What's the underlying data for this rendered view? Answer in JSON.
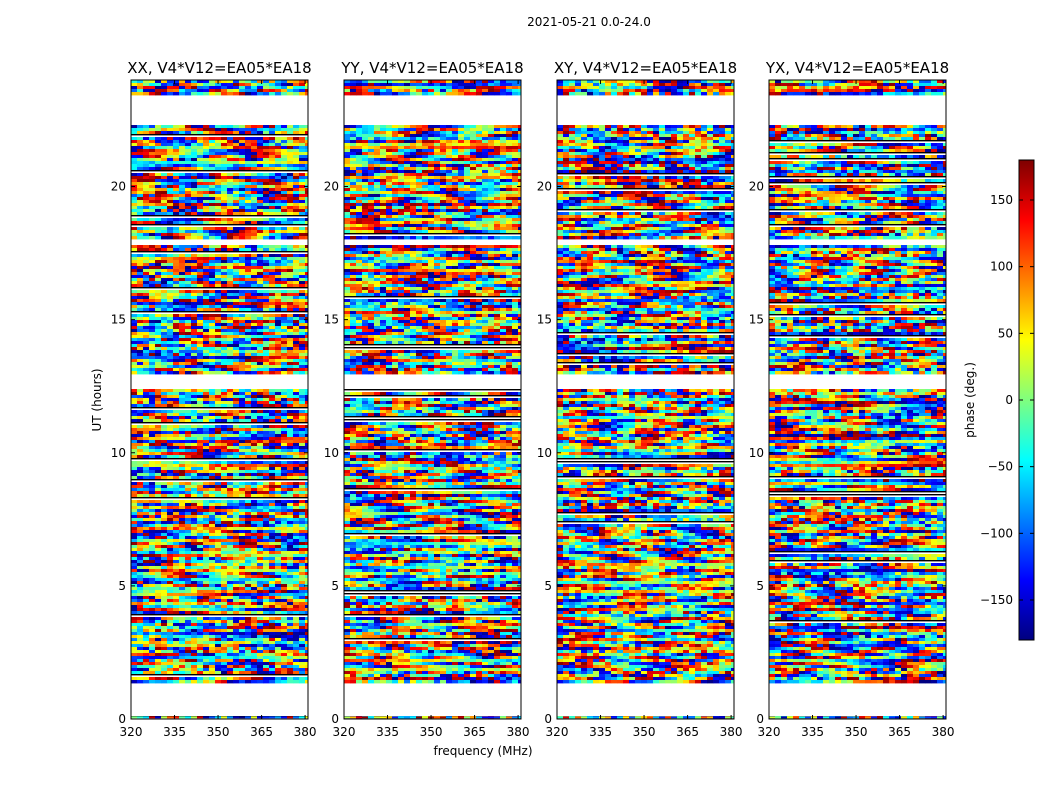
{
  "chart_data": {
    "type": "heatmap",
    "title": "2021-05-21 0.0-24.0",
    "xlabel": "frequency (MHz)",
    "ylabel": "UT (hours)",
    "colorbar_label": "phase (deg.)",
    "colormap": "jet",
    "xlim": [
      320,
      381
    ],
    "ylim": [
      0,
      24
    ],
    "x_ticks": [
      "320",
      "335",
      "350",
      "365",
      "380"
    ],
    "y_ticks": [
      "0",
      "5",
      "10",
      "15",
      "20"
    ],
    "color_range": [
      -180,
      180
    ],
    "colorbar_ticks": [
      "150",
      "100",
      "50",
      "0",
      "−50",
      "−100",
      "−150"
    ],
    "gaps_hours": [
      [
        0.1,
        1.35
      ],
      [
        12.4,
        13.0
      ],
      [
        17.75,
        18.05
      ],
      [
        22.3,
        23.4
      ]
    ],
    "panels": [
      {
        "title": "XX, V4*V12=EA05*EA18",
        "polarization": "XX",
        "baseline": "V4*V12=EA05*EA18"
      },
      {
        "title": "YY, V4*V12=EA05*EA18",
        "polarization": "YY",
        "baseline": "V4*V12=EA05*EA18"
      },
      {
        "title": "XY, V4*V12=EA05*EA18",
        "polarization": "XY",
        "baseline": "V4*V12=EA05*EA18"
      },
      {
        "title": "YX, V4*V12=EA05*EA18",
        "polarization": "YX",
        "baseline": "V4*V12=EA05*EA18"
      }
    ]
  }
}
